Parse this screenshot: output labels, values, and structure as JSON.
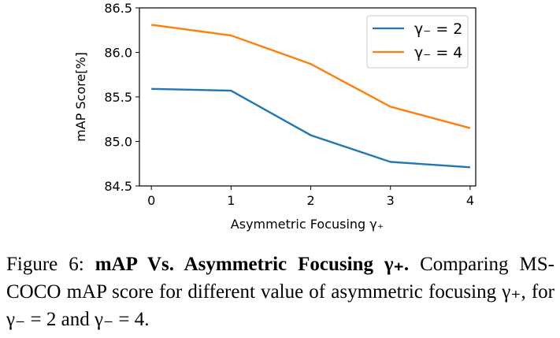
{
  "chart_data": {
    "type": "line",
    "x": [
      0,
      1,
      2,
      3,
      4
    ],
    "series": [
      {
        "name": "γ₋ = 2",
        "values": [
          85.59,
          85.57,
          85.07,
          84.77,
          84.71
        ],
        "color": "#1f77b4"
      },
      {
        "name": "γ₋ = 4",
        "values": [
          86.31,
          86.19,
          85.87,
          85.39,
          85.15
        ],
        "color": "#ff7f0e"
      }
    ],
    "xlabel": "Asymmetric Focusing γ₊",
    "ylabel": "mAP Score[%]",
    "xticks": [
      "0",
      "1",
      "2",
      "3",
      "4"
    ],
    "yticks": [
      "84.5",
      "85.0",
      "85.5",
      "86.0",
      "86.5"
    ],
    "xlim": [
      -0.15,
      4.07
    ],
    "ylim": [
      84.5,
      86.5
    ],
    "grid": false,
    "legend_position": "top-right"
  },
  "caption": {
    "label": "Figure 6:",
    "bold_title": "mAP Vs. Asymmetric Focusing γ₊.",
    "body": "Comparing MS-COCO mAP score for different value of asymmetric focusing γ₊, for γ₋ = 2 and γ₋ = 4."
  }
}
